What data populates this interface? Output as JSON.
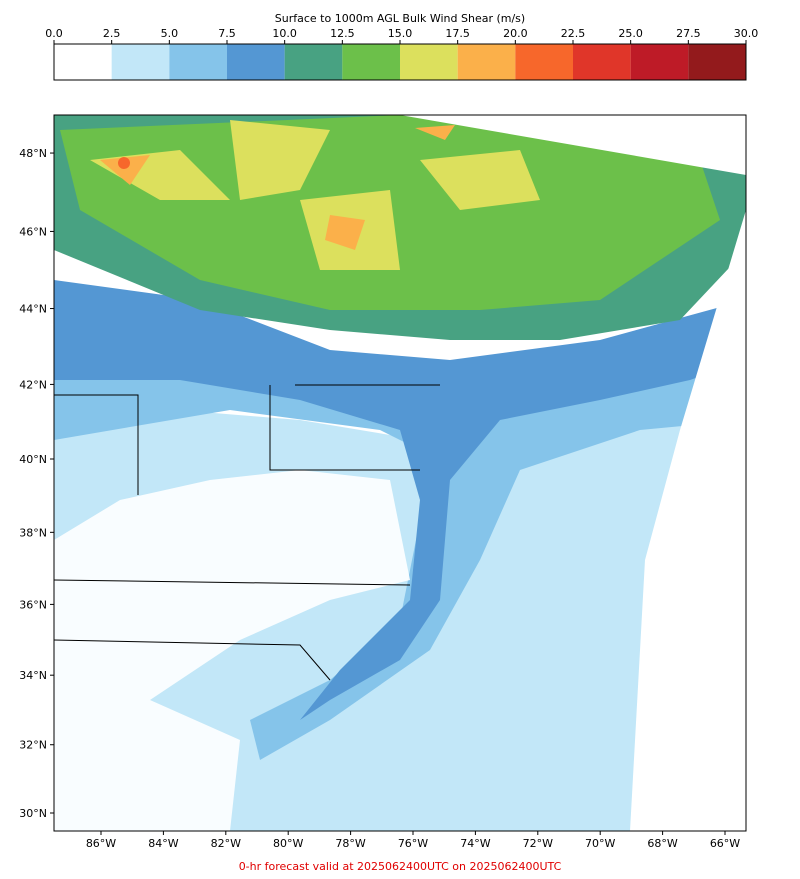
{
  "colorbar": {
    "title": "Surface to 1000m AGL Bulk Wind Shear (m/s)",
    "lim": [
      0,
      30
    ],
    "ticks": [
      {
        "value": 0,
        "label": "0.0"
      },
      2.5,
      {
        "value": 5,
        "label": "5.0"
      },
      7.5,
      {
        "value": 10,
        "label": "10.0"
      },
      12.5,
      {
        "value": 15,
        "label": "15.0"
      },
      17.5,
      {
        "value": 20,
        "label": "20.0"
      },
      22.5,
      {
        "value": 25,
        "label": "25.0"
      },
      27.5,
      {
        "value": 30,
        "label": "30.0"
      }
    ],
    "colors": [
      "#ffffff",
      "#c2e7f8",
      "#85c4ea",
      "#5497d3",
      "#48a282",
      "#6cc04a",
      "#dce05d",
      "#fbb04a",
      "#f7672b",
      "#e03629",
      "#be1b27",
      "#931a1c"
    ]
  },
  "map": {
    "lat_ticks": [
      {
        "value": 48,
        "label": "48°N"
      },
      {
        "value": 46,
        "label": "46°N"
      },
      {
        "value": 44,
        "label": "44°N"
      },
      {
        "value": 42,
        "label": "42°N"
      },
      {
        "value": 40,
        "label": "40°N"
      },
      {
        "value": 38,
        "label": "38°N"
      },
      {
        "value": 36,
        "label": "36°N"
      },
      {
        "value": 34,
        "label": "34°N"
      },
      {
        "value": 32,
        "label": "32°N"
      },
      {
        "value": 30,
        "label": "30°N"
      }
    ],
    "lon_ticks": [
      {
        "value": -86,
        "label": "86°W"
      },
      {
        "value": -84,
        "label": "84°W"
      },
      {
        "value": -82,
        "label": "82°W"
      },
      {
        "value": -80,
        "label": "80°W"
      },
      {
        "value": -78,
        "label": "78°W"
      },
      {
        "value": -76,
        "label": "76°W"
      },
      {
        "value": -74,
        "label": "74°W"
      },
      {
        "value": -72,
        "label": "72°W"
      },
      {
        "value": -70,
        "label": "70°W"
      },
      {
        "value": -68,
        "label": "68°W"
      },
      {
        "value": -66,
        "label": "66°W"
      }
    ]
  },
  "footer": "0-hr forecast valid at 2025062400UTC on 2025062400UTC"
}
